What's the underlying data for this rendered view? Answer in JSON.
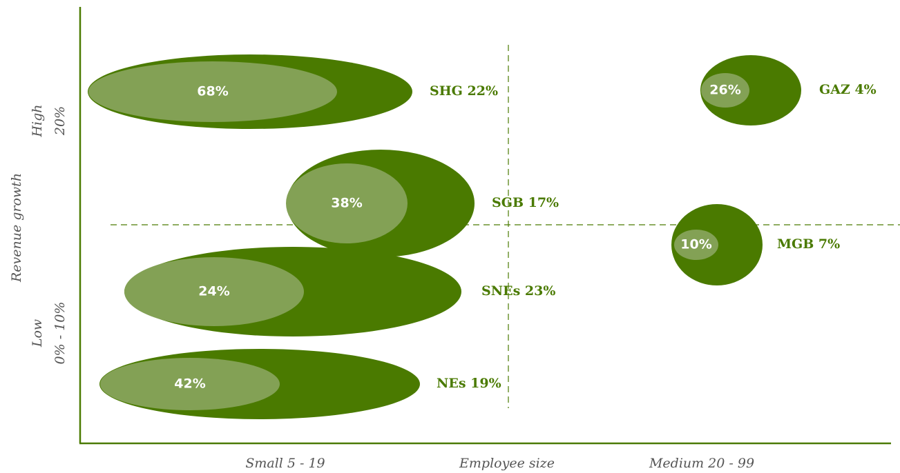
{
  "axes": {
    "y_title": "Revenue growth",
    "y_high": [
      "High",
      "20%"
    ],
    "y_low": [
      "Low",
      "0% - 10%"
    ],
    "x_left": "Small 5 - 19",
    "x_title": "Employee size",
    "x_right": "Medium 20 - 99"
  },
  "nodes": [
    {
      "label": "SHG 22%",
      "inner": "68%"
    },
    {
      "label": "SGB 17%",
      "inner": "38%"
    },
    {
      "label": "SNEs 23%",
      "inner": "24%"
    },
    {
      "label": "NEs 19%",
      "inner": "42%"
    },
    {
      "label": "GAZ 4%",
      "inner": "26%"
    },
    {
      "label": "MGB 7%",
      "inner": "10%"
    }
  ]
}
